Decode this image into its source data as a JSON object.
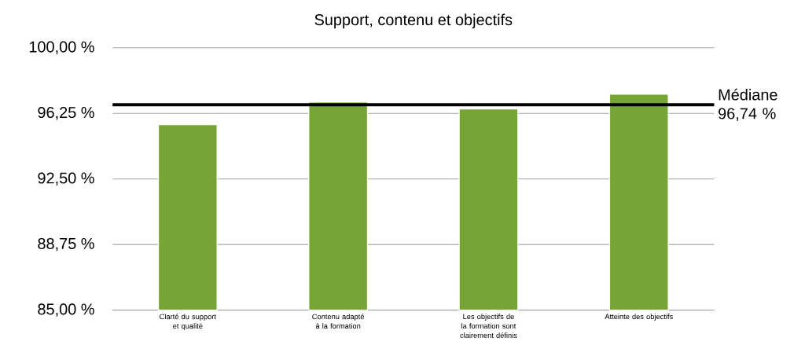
{
  "chart_data": {
    "type": "bar",
    "title": "Support, contenu et objectifs",
    "categories": [
      "Clarté du support et qualité",
      "Contenu adapté à la formation",
      "Les objectifs de la formation sont clairement définis",
      "Atteinte des objectifs"
    ],
    "values": [
      95.6,
      96.9,
      96.5,
      97.35
    ],
    "color": "#76a535",
    "ylim": [
      85,
      100
    ],
    "yticks": [
      {
        "value": 85,
        "label": "85,00 %"
      },
      {
        "value": 88.75,
        "label": "88,75 %"
      },
      {
        "value": 92.5,
        "label": "92,50 %"
      },
      {
        "value": 96.25,
        "label": "96,25 %"
      },
      {
        "value": 100,
        "label": "100,00 %"
      }
    ],
    "grid": "y",
    "ref_lines": [
      {
        "axis": "y",
        "value": 96.74,
        "label": "Médiane 96,74 %",
        "color": "#000000"
      }
    ]
  }
}
